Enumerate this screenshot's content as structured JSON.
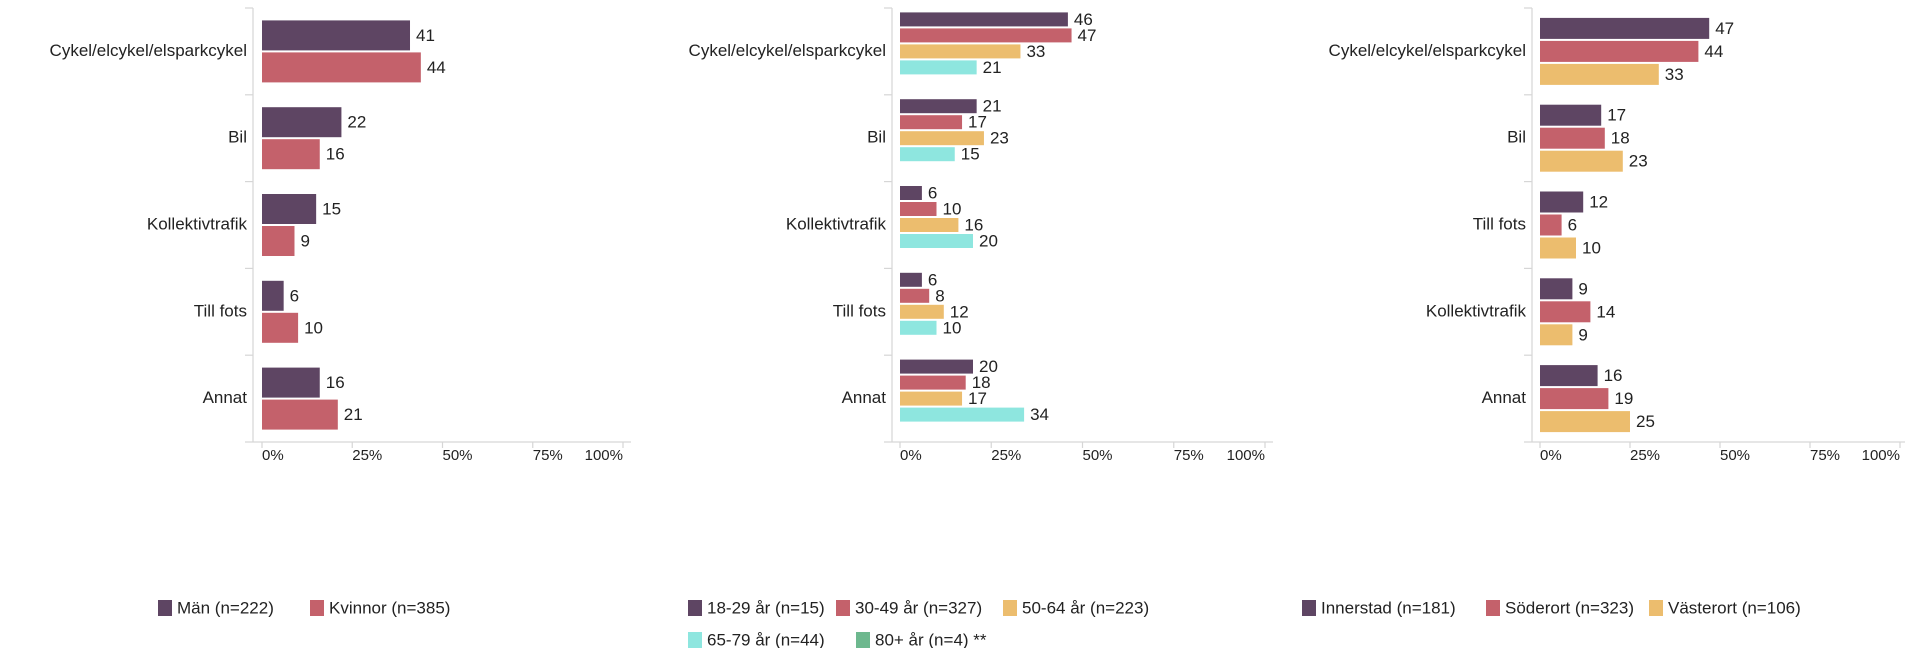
{
  "chart_data": [
    {
      "type": "bar",
      "orientation": "horizontal",
      "categories": [
        "Cykel/elcykel/elsparkcykel",
        "Bil",
        "Kollektivtrafik",
        "Till fots",
        "Annat"
      ],
      "series": [
        {
          "name": "Män (n=222)",
          "color": "#5e4563",
          "values": [
            41,
            22,
            15,
            6,
            16
          ]
        },
        {
          "name": "Kvinnor (n=385)",
          "color": "#c4616b",
          "values": [
            44,
            16,
            9,
            10,
            21
          ]
        }
      ],
      "xlim": [
        0,
        100
      ],
      "xticks": [
        {
          "value": 0,
          "label": "0%"
        },
        {
          "value": 25,
          "label": "25%"
        },
        {
          "value": 50,
          "label": "50%"
        },
        {
          "value": 75,
          "label": "75%"
        },
        {
          "value": 100,
          "label": "100%"
        }
      ]
    },
    {
      "type": "bar",
      "orientation": "horizontal",
      "categories": [
        "Cykel/elcykel/elsparkcykel",
        "Bil",
        "Kollektivtrafik",
        "Till fots",
        "Annat"
      ],
      "series": [
        {
          "name": "18-29 år (n=15)",
          "color": "#5e4563",
          "values": [
            46,
            21,
            6,
            6,
            20
          ]
        },
        {
          "name": "30-49 år (n=327)",
          "color": "#c4616b",
          "values": [
            47,
            17,
            10,
            8,
            18
          ]
        },
        {
          "name": "50-64 år (n=223)",
          "color": "#ecbd6e",
          "values": [
            33,
            23,
            16,
            12,
            17
          ]
        },
        {
          "name": "65-79 år (n=44)",
          "color": "#8ee6df",
          "values": [
            21,
            15,
            20,
            10,
            34
          ]
        },
        {
          "name": "80+ år (n=4) **",
          "color": "#6db88e",
          "values": [
            null,
            null,
            null,
            null,
            null
          ]
        }
      ],
      "xlim": [
        0,
        100
      ],
      "xticks": [
        {
          "value": 0,
          "label": "0%"
        },
        {
          "value": 25,
          "label": "25%"
        },
        {
          "value": 50,
          "label": "50%"
        },
        {
          "value": 75,
          "label": "75%"
        },
        {
          "value": 100,
          "label": "100%"
        }
      ]
    },
    {
      "type": "bar",
      "orientation": "horizontal",
      "categories": [
        "Cykel/elcykel/elsparkcykel",
        "Bil",
        "Till fots",
        "Kollektivtrafik",
        "Annat"
      ],
      "series": [
        {
          "name": "Innerstad (n=181)",
          "color": "#5e4563",
          "values": [
            47,
            17,
            12,
            9,
            16
          ]
        },
        {
          "name": "Söderort (n=323)",
          "color": "#c4616b",
          "values": [
            44,
            18,
            6,
            14,
            19
          ]
        },
        {
          "name": "Västerort (n=106)",
          "color": "#ecbd6e",
          "values": [
            33,
            23,
            10,
            9,
            25
          ]
        }
      ],
      "xlim": [
        0,
        100
      ],
      "xticks": [
        {
          "value": 0,
          "label": "0%"
        },
        {
          "value": 25,
          "label": "25%"
        },
        {
          "value": 50,
          "label": "50%"
        },
        {
          "value": 75,
          "label": "75%"
        },
        {
          "value": 100,
          "label": "100%"
        }
      ]
    }
  ]
}
